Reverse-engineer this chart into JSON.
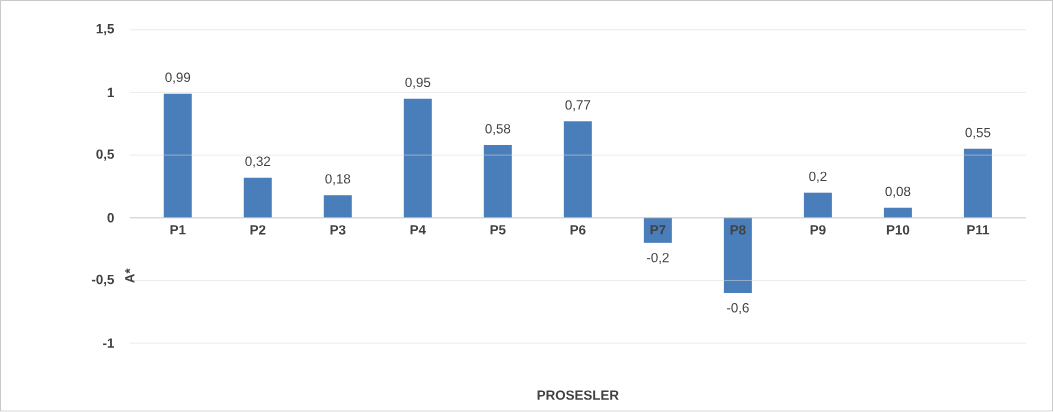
{
  "chart_data": {
    "type": "bar",
    "xlabel": "PROSESLER",
    "ylabel": "A*",
    "categories": [
      "P1",
      "P2",
      "P3",
      "P4",
      "P5",
      "P6",
      "P7",
      "P8",
      "P9",
      "P10",
      "P11"
    ],
    "values": [
      0.99,
      0.32,
      0.18,
      0.95,
      0.58,
      0.77,
      -0.2,
      -0.6,
      0.2,
      0.08,
      0.55
    ],
    "value_labels": [
      "0,99",
      "0,32",
      "0,18",
      "0,95",
      "0,58",
      "0,77",
      "-0,2",
      "-0,6",
      "0,2",
      "0,08",
      "0,55"
    ],
    "color": "#4a7ebb",
    "ylim": [
      -1,
      1.5
    ],
    "yticks": [
      {
        "value": -1,
        "label": "-1"
      },
      {
        "value": -0.5,
        "label": "-0,5"
      },
      {
        "value": 0,
        "label": "0"
      },
      {
        "value": 0.5,
        "label": "0,5"
      },
      {
        "value": 1,
        "label": "1"
      },
      {
        "value": 1.5,
        "label": "1,5"
      }
    ],
    "grid": "y"
  }
}
